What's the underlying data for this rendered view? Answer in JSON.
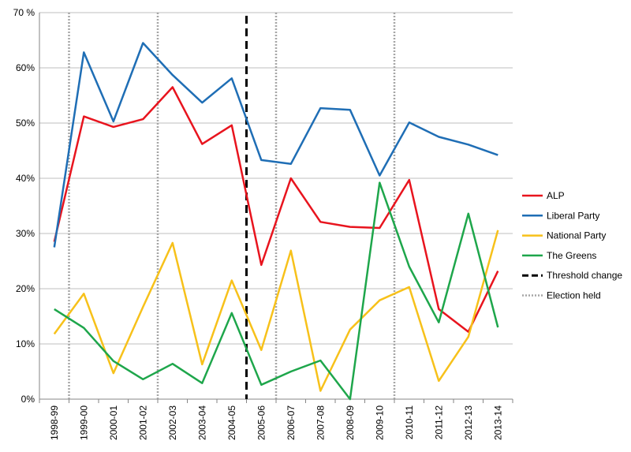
{
  "chart_data": {
    "type": "line",
    "title": "",
    "xlabel": "",
    "ylabel": "",
    "categories": [
      "1998-99",
      "1999-00",
      "2000-01",
      "2001-02",
      "2002-03",
      "2003-04",
      "2004-05",
      "2005-06",
      "2006-07",
      "2007-08",
      "2008-09",
      "2009-10",
      "2010-11",
      "2011-12",
      "2012-13",
      "2013-14"
    ],
    "ylim": [
      0,
      70
    ],
    "yticks": [
      0,
      10,
      20,
      30,
      40,
      50,
      60,
      70
    ],
    "ytick_labels": [
      "0%",
      "10%",
      "20%",
      "30%",
      "40%",
      "50%",
      "60%",
      "70 %"
    ],
    "grid": "horizontal",
    "legend_position": "right",
    "series": [
      {
        "name": "ALP",
        "color": "#e8141e",
        "values": [
          28.5,
          51.2,
          49.3,
          50.7,
          56.5,
          46.2,
          49.6,
          24.3,
          40.0,
          32.1,
          31.2,
          31.0,
          39.7,
          16.3,
          12.2,
          23.2
        ]
      },
      {
        "name": "Liberal Party",
        "color": "#1f6eb5",
        "values": [
          27.5,
          62.8,
          50.3,
          64.5,
          58.7,
          53.7,
          58.1,
          43.3,
          42.6,
          52.7,
          52.4,
          40.5,
          50.1,
          47.5,
          46.1,
          44.2
        ]
      },
      {
        "name": "National Party",
        "color": "#f7c11a",
        "values": [
          11.8,
          19.1,
          4.7,
          16.7,
          28.3,
          6.3,
          21.5,
          8.9,
          26.9,
          1.5,
          12.6,
          17.9,
          20.3,
          3.3,
          11.3,
          30.6
        ]
      },
      {
        "name": "The Greens",
        "color": "#1ea64b",
        "values": [
          16.3,
          12.9,
          6.9,
          3.6,
          6.4,
          2.9,
          15.6,
          2.6,
          5.0,
          7.0,
          0.0,
          39.2,
          24.0,
          13.9,
          33.6,
          13.0
        ]
      }
    ],
    "threshold_line": {
      "label": "Threshold change",
      "after_category": "2004-05",
      "color": "#000000",
      "style": "dashed"
    },
    "election_lines": {
      "label": "Election held",
      "after_categories": [
        "1998-99",
        "2001-02",
        "2005-06",
        "2009-10"
      ],
      "color": "#a6a6a6",
      "style": "dotted"
    }
  }
}
